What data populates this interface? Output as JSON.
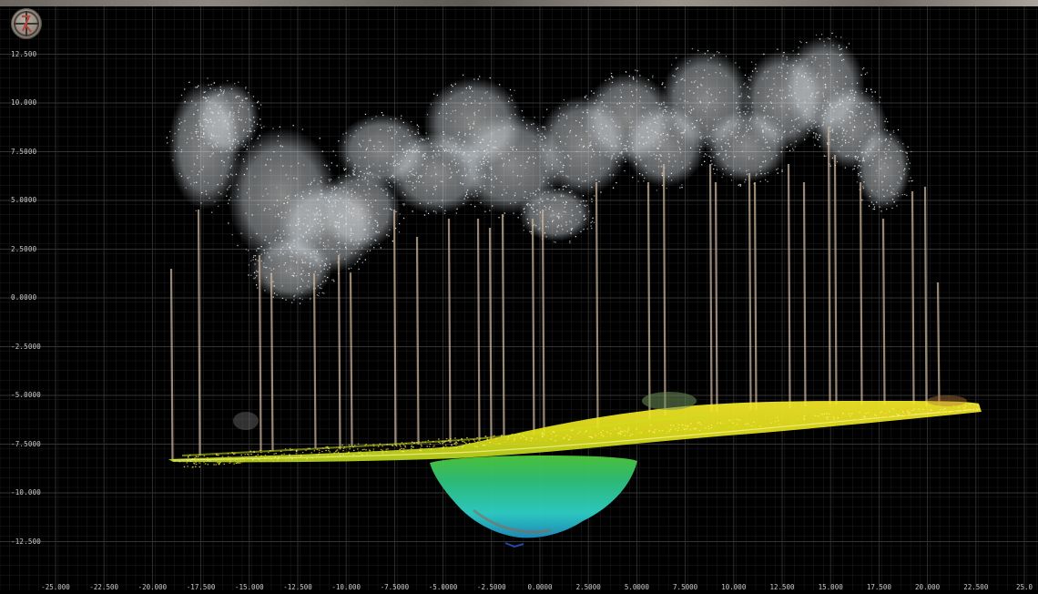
{
  "viewer": {
    "logo_icon": "compass-crosshair-logo-icon",
    "background_color": "#000000",
    "grid_color": "#2b2b2b"
  },
  "y_axis": {
    "labels": [
      "12.500",
      "10.000",
      "7.5000",
      "5.0000",
      "2.5000",
      "0.0000",
      "-2.5000",
      "-5.0000",
      "-7.5000",
      "-10.000",
      "-12.500"
    ],
    "values": [
      12.5,
      10,
      7.5,
      5,
      2.5,
      0,
      -2.5,
      -5,
      -7.5,
      -10,
      -12.5
    ]
  },
  "x_axis": {
    "labels": [
      "-25.000",
      "-22.500",
      "-20.000",
      "-17.500",
      "-15.000",
      "-12.500",
      "-10.000",
      "-7.5000",
      "-5.0000",
      "-2.5000",
      "0.0000",
      "2.5000",
      "5.0000",
      "7.5000",
      "10.000",
      "12.500",
      "15.000",
      "17.500",
      "20.000",
      "22.500",
      "25.0"
    ],
    "values": [
      -25,
      -22.5,
      -20,
      -17.5,
      -15,
      -12.5,
      -10,
      -7.5,
      -5,
      -2.5,
      0,
      2.5,
      5,
      7.5,
      10,
      12.5,
      15,
      17.5,
      20,
      22.5,
      25
    ]
  },
  "colors": {
    "canopy": "#eef2f5",
    "trunk": "#c9b39a",
    "ground_high": "#f2e51a",
    "ground_mid": "#b8d81c",
    "pit_top": "#47c83a",
    "pit_bottom": "#36d6d2"
  }
}
